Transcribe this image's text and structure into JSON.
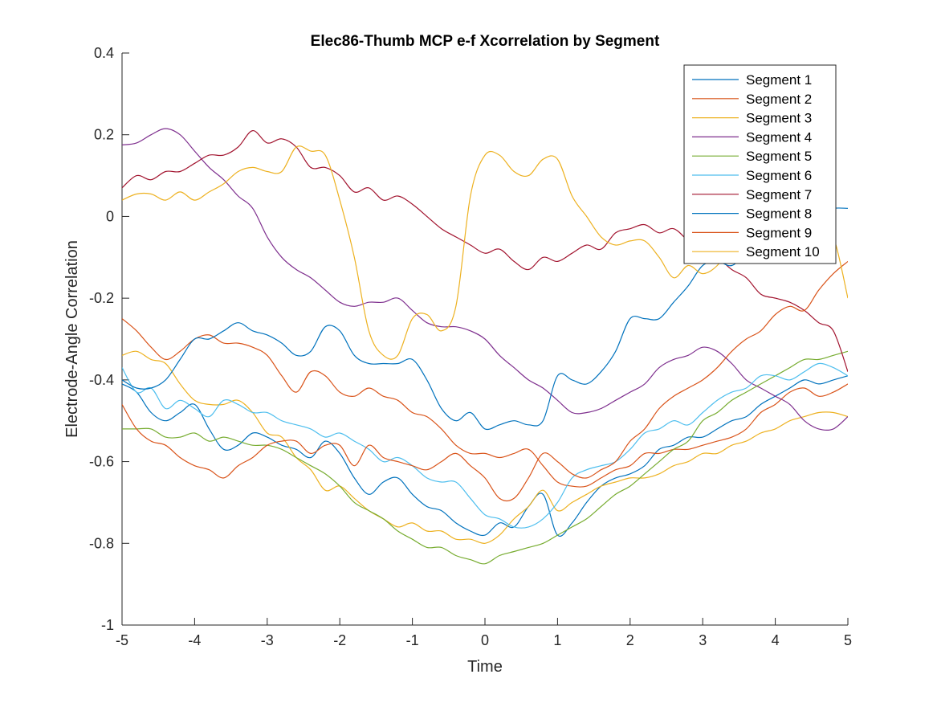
{
  "chart_data": {
    "type": "line",
    "title": "Elec86-Thumb MCP e-f Xcorrelation by Segment",
    "xlabel": "Time",
    "ylabel": "Electrode-Angle Correlation",
    "xlim": [
      -5,
      5
    ],
    "ylim": [
      -1,
      0.4
    ],
    "xticks": [
      -5,
      -4,
      -3,
      -2,
      -1,
      0,
      1,
      2,
      3,
      4,
      5
    ],
    "yticks": [
      -1,
      -0.8,
      -0.6,
      -0.4,
      -0.2,
      0,
      0.2,
      0.4
    ],
    "xtick_labels": [
      "-5",
      "-4",
      "-3",
      "-2",
      "-1",
      "0",
      "1",
      "2",
      "3",
      "4",
      "5"
    ],
    "ytick_labels": [
      "-1",
      "-0.8",
      "-0.6",
      "-0.4",
      "-0.2",
      "0",
      "0.2",
      "0.4"
    ],
    "grid": false,
    "legend_position": "top-right",
    "series": [
      {
        "name": "Segment 1",
        "color": "#0072BD",
        "x": [
          -5,
          -4.8,
          -4.6,
          -4.4,
          -4.2,
          -4.0,
          -3.8,
          -3.6,
          -3.4,
          -3.2,
          -3.0,
          -2.8,
          -2.6,
          -2.4,
          -2.2,
          -2.0,
          -1.8,
          -1.6,
          -1.4,
          -1.2,
          -1.0,
          -0.8,
          -0.6,
          -0.4,
          -0.2,
          0.0,
          0.2,
          0.4,
          0.6,
          0.8,
          1.0,
          1.2,
          1.4,
          1.6,
          1.8,
          2.0,
          2.2,
          2.4,
          2.6,
          2.8,
          3.0,
          3.2,
          3.4,
          3.6,
          3.8,
          4.0,
          4.2,
          4.4,
          4.6,
          4.8,
          5.0
        ],
        "y": [
          -0.41,
          -0.43,
          -0.48,
          -0.5,
          -0.48,
          -0.46,
          -0.52,
          -0.57,
          -0.56,
          -0.53,
          -0.54,
          -0.56,
          -0.57,
          -0.59,
          -0.55,
          -0.58,
          -0.64,
          -0.68,
          -0.65,
          -0.64,
          -0.68,
          -0.71,
          -0.72,
          -0.75,
          -0.77,
          -0.78,
          -0.75,
          -0.76,
          -0.71,
          -0.68,
          -0.78,
          -0.75,
          -0.7,
          -0.66,
          -0.64,
          -0.63,
          -0.61,
          -0.57,
          -0.56,
          -0.54,
          -0.54,
          -0.52,
          -0.5,
          -0.49,
          -0.46,
          -0.44,
          -0.42,
          -0.4,
          -0.41,
          -0.4,
          -0.39
        ]
      },
      {
        "name": "Segment 2",
        "color": "#D95319",
        "x": [
          -5,
          -4.8,
          -4.6,
          -4.4,
          -4.2,
          -4.0,
          -3.8,
          -3.6,
          -3.4,
          -3.2,
          -3.0,
          -2.8,
          -2.6,
          -2.4,
          -2.2,
          -2.0,
          -1.8,
          -1.6,
          -1.4,
          -1.2,
          -1.0,
          -0.8,
          -0.6,
          -0.4,
          -0.2,
          0.0,
          0.2,
          0.4,
          0.6,
          0.8,
          1.0,
          1.2,
          1.4,
          1.6,
          1.8,
          2.0,
          2.2,
          2.4,
          2.6,
          2.8,
          3.0,
          3.2,
          3.4,
          3.6,
          3.8,
          4.0,
          4.2,
          4.4,
          4.6,
          4.8,
          5.0
        ],
        "y": [
          -0.25,
          -0.28,
          -0.32,
          -0.35,
          -0.33,
          -0.3,
          -0.29,
          -0.31,
          -0.31,
          -0.32,
          -0.34,
          -0.39,
          -0.43,
          -0.38,
          -0.39,
          -0.43,
          -0.44,
          -0.42,
          -0.44,
          -0.45,
          -0.48,
          -0.49,
          -0.52,
          -0.56,
          -0.58,
          -0.58,
          -0.59,
          -0.58,
          -0.57,
          -0.61,
          -0.65,
          -0.66,
          -0.66,
          -0.64,
          -0.62,
          -0.61,
          -0.58,
          -0.58,
          -0.57,
          -0.57,
          -0.56,
          -0.55,
          -0.54,
          -0.52,
          -0.48,
          -0.46,
          -0.43,
          -0.42,
          -0.44,
          -0.43,
          -0.41
        ]
      },
      {
        "name": "Segment 3",
        "color": "#EDB120",
        "x": [
          -5,
          -4.8,
          -4.6,
          -4.4,
          -4.2,
          -4.0,
          -3.8,
          -3.6,
          -3.4,
          -3.2,
          -3.0,
          -2.8,
          -2.6,
          -2.4,
          -2.2,
          -2.0,
          -1.8,
          -1.6,
          -1.4,
          -1.2,
          -1.0,
          -0.8,
          -0.6,
          -0.4,
          -0.2,
          0.0,
          0.2,
          0.4,
          0.6,
          0.8,
          1.0,
          1.2,
          1.4,
          1.6,
          1.8,
          2.0,
          2.2,
          2.4,
          2.6,
          2.8,
          3.0,
          3.2,
          3.4,
          3.6,
          3.8,
          4.0,
          4.2,
          4.4,
          4.6,
          4.8,
          5.0
        ],
        "y": [
          -0.34,
          -0.33,
          -0.35,
          -0.36,
          -0.41,
          -0.45,
          -0.46,
          -0.46,
          -0.45,
          -0.48,
          -0.53,
          -0.54,
          -0.59,
          -0.62,
          -0.67,
          -0.66,
          -0.69,
          -0.72,
          -0.74,
          -0.76,
          -0.75,
          -0.77,
          -0.77,
          -0.79,
          -0.79,
          -0.8,
          -0.78,
          -0.74,
          -0.71,
          -0.67,
          -0.72,
          -0.7,
          -0.68,
          -0.66,
          -0.65,
          -0.64,
          -0.64,
          -0.63,
          -0.61,
          -0.6,
          -0.58,
          -0.58,
          -0.56,
          -0.55,
          -0.53,
          -0.52,
          -0.5,
          -0.49,
          -0.48,
          -0.48,
          -0.49
        ]
      },
      {
        "name": "Segment 4",
        "color": "#7E2F8E",
        "x": [
          -5,
          -4.8,
          -4.6,
          -4.4,
          -4.2,
          -4.0,
          -3.8,
          -3.6,
          -3.4,
          -3.2,
          -3.0,
          -2.8,
          -2.6,
          -2.4,
          -2.2,
          -2.0,
          -1.8,
          -1.6,
          -1.4,
          -1.2,
          -1.0,
          -0.8,
          -0.6,
          -0.4,
          -0.2,
          0.0,
          0.2,
          0.4,
          0.6,
          0.8,
          1.0,
          1.2,
          1.4,
          1.6,
          1.8,
          2.0,
          2.2,
          2.4,
          2.6,
          2.8,
          3.0,
          3.2,
          3.4,
          3.6,
          3.8,
          4.0,
          4.2,
          4.4,
          4.6,
          4.8,
          5.0
        ],
        "y": [
          0.175,
          0.18,
          0.2,
          0.215,
          0.2,
          0.16,
          0.12,
          0.09,
          0.05,
          0.02,
          -0.05,
          -0.1,
          -0.13,
          -0.15,
          -0.18,
          -0.21,
          -0.22,
          -0.21,
          -0.21,
          -0.2,
          -0.23,
          -0.26,
          -0.27,
          -0.27,
          -0.28,
          -0.3,
          -0.34,
          -0.37,
          -0.4,
          -0.42,
          -0.45,
          -0.48,
          -0.48,
          -0.47,
          -0.45,
          -0.43,
          -0.41,
          -0.37,
          -0.35,
          -0.34,
          -0.32,
          -0.33,
          -0.36,
          -0.4,
          -0.42,
          -0.44,
          -0.46,
          -0.5,
          -0.52,
          -0.52,
          -0.49
        ]
      },
      {
        "name": "Segment 5",
        "color": "#77AC30",
        "x": [
          -5,
          -4.8,
          -4.6,
          -4.4,
          -4.2,
          -4.0,
          -3.8,
          -3.6,
          -3.4,
          -3.2,
          -3.0,
          -2.8,
          -2.6,
          -2.4,
          -2.2,
          -2.0,
          -1.8,
          -1.6,
          -1.4,
          -1.2,
          -1.0,
          -0.8,
          -0.6,
          -0.4,
          -0.2,
          0.0,
          0.2,
          0.4,
          0.6,
          0.8,
          1.0,
          1.2,
          1.4,
          1.6,
          1.8,
          2.0,
          2.2,
          2.4,
          2.6,
          2.8,
          3.0,
          3.2,
          3.4,
          3.6,
          3.8,
          4.0,
          4.2,
          4.4,
          4.6,
          4.8,
          5.0
        ],
        "y": [
          -0.52,
          -0.52,
          -0.52,
          -0.54,
          -0.54,
          -0.53,
          -0.55,
          -0.54,
          -0.55,
          -0.56,
          -0.56,
          -0.57,
          -0.59,
          -0.61,
          -0.63,
          -0.66,
          -0.7,
          -0.72,
          -0.74,
          -0.77,
          -0.79,
          -0.81,
          -0.81,
          -0.83,
          -0.84,
          -0.85,
          -0.83,
          -0.82,
          -0.81,
          -0.8,
          -0.78,
          -0.76,
          -0.74,
          -0.71,
          -0.68,
          -0.66,
          -0.63,
          -0.6,
          -0.57,
          -0.55,
          -0.5,
          -0.48,
          -0.45,
          -0.43,
          -0.41,
          -0.39,
          -0.37,
          -0.35,
          -0.35,
          -0.34,
          -0.33
        ]
      },
      {
        "name": "Segment 6",
        "color": "#4DBEEE",
        "x": [
          -5,
          -4.8,
          -4.6,
          -4.4,
          -4.2,
          -4.0,
          -3.8,
          -3.6,
          -3.4,
          -3.2,
          -3.0,
          -2.8,
          -2.6,
          -2.4,
          -2.2,
          -2.0,
          -1.8,
          -1.6,
          -1.4,
          -1.2,
          -1.0,
          -0.8,
          -0.6,
          -0.4,
          -0.2,
          0.0,
          0.2,
          0.4,
          0.6,
          0.8,
          1.0,
          1.2,
          1.4,
          1.6,
          1.8,
          2.0,
          2.2,
          2.4,
          2.6,
          2.8,
          3.0,
          3.2,
          3.4,
          3.6,
          3.8,
          4.0,
          4.2,
          4.4,
          4.6,
          4.8,
          5.0
        ],
        "y": [
          -0.37,
          -0.43,
          -0.42,
          -0.47,
          -0.45,
          -0.47,
          -0.49,
          -0.45,
          -0.46,
          -0.48,
          -0.48,
          -0.5,
          -0.51,
          -0.52,
          -0.54,
          -0.53,
          -0.55,
          -0.57,
          -0.6,
          -0.59,
          -0.61,
          -0.64,
          -0.65,
          -0.65,
          -0.69,
          -0.73,
          -0.74,
          -0.76,
          -0.76,
          -0.74,
          -0.7,
          -0.64,
          -0.62,
          -0.61,
          -0.6,
          -0.57,
          -0.53,
          -0.52,
          -0.5,
          -0.51,
          -0.48,
          -0.45,
          -0.43,
          -0.42,
          -0.39,
          -0.39,
          -0.4,
          -0.38,
          -0.36,
          -0.37,
          -0.39
        ]
      },
      {
        "name": "Segment 7",
        "color": "#A2142F",
        "x": [
          -5,
          -4.8,
          -4.6,
          -4.4,
          -4.2,
          -4.0,
          -3.8,
          -3.6,
          -3.4,
          -3.2,
          -3.0,
          -2.8,
          -2.6,
          -2.4,
          -2.2,
          -2.0,
          -1.8,
          -1.6,
          -1.4,
          -1.2,
          -1.0,
          -0.8,
          -0.6,
          -0.4,
          -0.2,
          0.0,
          0.2,
          0.4,
          0.6,
          0.8,
          1.0,
          1.2,
          1.4,
          1.6,
          1.8,
          2.0,
          2.2,
          2.4,
          2.6,
          2.8,
          3.0,
          3.2,
          3.4,
          3.6,
          3.8,
          4.0,
          4.2,
          4.4,
          4.6,
          4.8,
          5.0
        ],
        "y": [
          0.07,
          0.1,
          0.09,
          0.11,
          0.11,
          0.13,
          0.15,
          0.15,
          0.17,
          0.21,
          0.18,
          0.19,
          0.17,
          0.12,
          0.12,
          0.1,
          0.06,
          0.07,
          0.04,
          0.05,
          0.03,
          0.0,
          -0.03,
          -0.05,
          -0.07,
          -0.09,
          -0.08,
          -0.11,
          -0.13,
          -0.1,
          -0.11,
          -0.09,
          -0.07,
          -0.08,
          -0.04,
          -0.03,
          -0.02,
          -0.04,
          -0.03,
          -0.06,
          -0.09,
          -0.1,
          -0.13,
          -0.15,
          -0.19,
          -0.2,
          -0.21,
          -0.23,
          -0.26,
          -0.28,
          -0.38
        ]
      },
      {
        "name": "Segment 8",
        "color": "#0072BD",
        "x": [
          -5,
          -4.8,
          -4.6,
          -4.4,
          -4.2,
          -4.0,
          -3.8,
          -3.6,
          -3.4,
          -3.2,
          -3.0,
          -2.8,
          -2.6,
          -2.4,
          -2.2,
          -2.0,
          -1.8,
          -1.6,
          -1.4,
          -1.2,
          -1.0,
          -0.8,
          -0.6,
          -0.4,
          -0.2,
          0.0,
          0.2,
          0.4,
          0.6,
          0.8,
          1.0,
          1.2,
          1.4,
          1.6,
          1.8,
          2.0,
          2.2,
          2.4,
          2.6,
          2.8,
          3.0,
          3.2,
          3.4,
          3.6,
          3.8,
          4.0,
          4.2,
          4.4,
          4.6,
          4.8,
          5.0
        ],
        "y": [
          -0.4,
          -0.42,
          -0.42,
          -0.4,
          -0.35,
          -0.3,
          -0.3,
          -0.28,
          -0.26,
          -0.28,
          -0.29,
          -0.31,
          -0.34,
          -0.33,
          -0.27,
          -0.28,
          -0.34,
          -0.36,
          -0.36,
          -0.36,
          -0.35,
          -0.4,
          -0.47,
          -0.5,
          -0.48,
          -0.52,
          -0.51,
          -0.5,
          -0.51,
          -0.5,
          -0.39,
          -0.4,
          -0.41,
          -0.38,
          -0.33,
          -0.25,
          -0.25,
          -0.25,
          -0.21,
          -0.17,
          -0.12,
          -0.11,
          -0.12,
          -0.09,
          -0.06,
          -0.05,
          -0.03,
          0.0,
          0.01,
          0.02,
          0.02
        ]
      },
      {
        "name": "Segment 9",
        "color": "#D95319",
        "x": [
          -5,
          -4.8,
          -4.6,
          -4.4,
          -4.2,
          -4.0,
          -3.8,
          -3.6,
          -3.4,
          -3.2,
          -3.0,
          -2.8,
          -2.6,
          -2.4,
          -2.2,
          -2.0,
          -1.8,
          -1.6,
          -1.4,
          -1.2,
          -1.0,
          -0.8,
          -0.6,
          -0.4,
          -0.2,
          0.0,
          0.2,
          0.4,
          0.6,
          0.8,
          1.0,
          1.2,
          1.4,
          1.6,
          1.8,
          2.0,
          2.2,
          2.4,
          2.6,
          2.8,
          3.0,
          3.2,
          3.4,
          3.6,
          3.8,
          4.0,
          4.2,
          4.4,
          4.6,
          4.8,
          5.0
        ],
        "y": [
          -0.46,
          -0.52,
          -0.55,
          -0.56,
          -0.59,
          -0.61,
          -0.62,
          -0.64,
          -0.61,
          -0.59,
          -0.56,
          -0.55,
          -0.55,
          -0.58,
          -0.56,
          -0.56,
          -0.61,
          -0.56,
          -0.59,
          -0.6,
          -0.61,
          -0.62,
          -0.6,
          -0.58,
          -0.61,
          -0.64,
          -0.69,
          -0.69,
          -0.64,
          -0.58,
          -0.6,
          -0.63,
          -0.64,
          -0.62,
          -0.6,
          -0.55,
          -0.52,
          -0.47,
          -0.44,
          -0.42,
          -0.4,
          -0.37,
          -0.33,
          -0.3,
          -0.28,
          -0.24,
          -0.22,
          -0.23,
          -0.18,
          -0.14,
          -0.11
        ]
      },
      {
        "name": "Segment 10",
        "color": "#EDB120",
        "x": [
          -5,
          -4.8,
          -4.6,
          -4.4,
          -4.2,
          -4.0,
          -3.8,
          -3.6,
          -3.4,
          -3.2,
          -3.0,
          -2.8,
          -2.6,
          -2.4,
          -2.2,
          -2.0,
          -1.8,
          -1.6,
          -1.4,
          -1.2,
          -1.0,
          -0.8,
          -0.6,
          -0.4,
          -0.2,
          0.0,
          0.2,
          0.4,
          0.6,
          0.8,
          1.0,
          1.2,
          1.4,
          1.6,
          1.8,
          2.0,
          2.2,
          2.4,
          2.6,
          2.8,
          3.0,
          3.2,
          3.4,
          3.6,
          3.8,
          4.0,
          4.2,
          4.4,
          4.6,
          4.8,
          5.0
        ],
        "y": [
          0.04,
          0.055,
          0.055,
          0.04,
          0.06,
          0.04,
          0.06,
          0.08,
          0.11,
          0.12,
          0.11,
          0.11,
          0.17,
          0.16,
          0.15,
          0.04,
          -0.1,
          -0.28,
          -0.34,
          -0.34,
          -0.25,
          -0.24,
          -0.28,
          -0.22,
          0.05,
          0.15,
          0.15,
          0.11,
          0.1,
          0.14,
          0.14,
          0.05,
          0.0,
          -0.05,
          -0.07,
          -0.06,
          -0.06,
          -0.1,
          -0.15,
          -0.12,
          -0.14,
          -0.12,
          -0.07,
          -0.02,
          0.01,
          0.0,
          -0.03,
          -0.01,
          -0.03,
          -0.05,
          -0.2
        ]
      }
    ]
  }
}
